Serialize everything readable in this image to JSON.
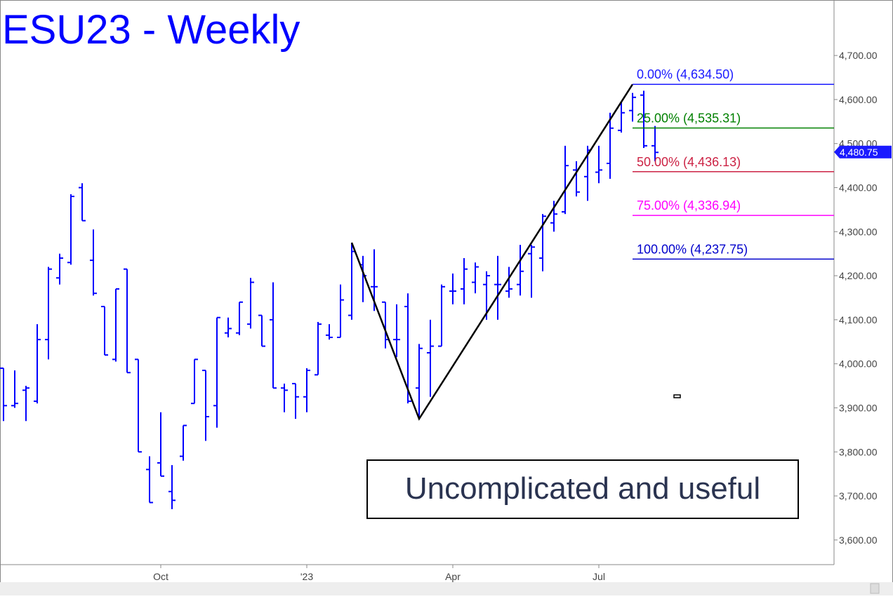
{
  "chart_data": {
    "type": "ohlc",
    "title": "ESU23 - Weekly",
    "color": "#0000ff",
    "categories": [
      null,
      null,
      null,
      null,
      null,
      null,
      null,
      null,
      null,
      null,
      null,
      null,
      null,
      null,
      null,
      null,
      null,
      null,
      null,
      null,
      null,
      null,
      null,
      null,
      null,
      null,
      null,
      null,
      null,
      null,
      null,
      null,
      null,
      null,
      null,
      null,
      null,
      null,
      null,
      null,
      null,
      null,
      null,
      null,
      null,
      null,
      null,
      null,
      null,
      null,
      null,
      null,
      null,
      null,
      null,
      null,
      null,
      null,
      null
    ],
    "open": [
      3990,
      3905,
      3940,
      3915,
      4055,
      4195,
      4230,
      4400,
      4235,
      4130,
      4010,
      4215,
      4010,
      3760,
      3775,
      3710,
      3790,
      3910,
      3985,
      3905,
      4070,
      4070,
      4090,
      4110,
      4100,
      3945,
      3955,
      3925,
      3975,
      4065,
      4060,
      4110,
      4225,
      4175,
      4140,
      4055,
      4130,
      3945,
      4025,
      4040,
      4165,
      4170,
      4185,
      4180,
      4180,
      4165,
      4180,
      4250,
      4240,
      4320,
      4345,
      4440,
      4425,
      4435,
      4455,
      4530,
      4575,
      4610,
      4495
    ],
    "high": [
      3990,
      3985,
      3950,
      4090,
      4220,
      4250,
      4385,
      4410,
      4305,
      4130,
      4170,
      4215,
      4010,
      3790,
      3890,
      3770,
      3860,
      4010,
      3985,
      4105,
      4105,
      4140,
      4195,
      4110,
      4185,
      3955,
      3955,
      3990,
      4095,
      4090,
      4180,
      4275,
      4245,
      4260,
      4140,
      4135,
      4160,
      4045,
      4100,
      4180,
      4205,
      4240,
      4230,
      4210,
      4245,
      4220,
      4270,
      4270,
      4340,
      4370,
      4495,
      4460,
      4495,
      4495,
      4570,
      4595,
      4615,
      4620,
      4540
    ],
    "low": [
      3870,
      3900,
      3870,
      3910,
      4010,
      4180,
      4225,
      4325,
      4155,
      4020,
      4005,
      3980,
      3800,
      3685,
      3745,
      3670,
      3780,
      3910,
      3825,
      3855,
      4060,
      4065,
      4080,
      4040,
      3945,
      3890,
      3875,
      3890,
      3975,
      4055,
      4060,
      4100,
      4140,
      4120,
      4035,
      4015,
      3910,
      3875,
      3925,
      4040,
      4135,
      4135,
      4160,
      4100,
      4100,
      4150,
      4155,
      4150,
      4210,
      4300,
      4340,
      4380,
      4370,
      4410,
      4420,
      4525,
      4550,
      4490,
      4460
    ],
    "close": [
      3905,
      3910,
      3945,
      4055,
      4215,
      4240,
      4380,
      4325,
      4160,
      4020,
      4170,
      3980,
      3800,
      3685,
      3745,
      3690,
      3860,
      4010,
      3880,
      4105,
      4080,
      4140,
      4185,
      4040,
      3945,
      3940,
      3925,
      3985,
      4090,
      4060,
      4145,
      4255,
      4200,
      4175,
      4055,
      4055,
      3915,
      4035,
      4040,
      4175,
      4165,
      4215,
      4220,
      4200,
      4180,
      4170,
      4210,
      4265,
      4335,
      4340,
      4450,
      4390,
      4485,
      4440,
      4535,
      4570,
      4605,
      4495,
      4480
    ],
    "ylim": [
      3544,
      4826
    ],
    "yticks": [
      {
        "value": 3600,
        "label": "3,600.00"
      },
      {
        "value": 3700,
        "label": "3,700.00"
      },
      {
        "value": 3800,
        "label": "3,800.00"
      },
      {
        "value": 3900,
        "label": "3,900.00"
      },
      {
        "value": 4000,
        "label": "4,000.00"
      },
      {
        "value": 4100,
        "label": "4,100.00"
      },
      {
        "value": 4200,
        "label": "4,200.00"
      },
      {
        "value": 4300,
        "label": "4,300.00"
      },
      {
        "value": 4400,
        "label": "4,400.00"
      },
      {
        "value": 4500,
        "label": "4,500.00"
      },
      {
        "value": 4600,
        "label": "4,600.00"
      },
      {
        "value": 4700,
        "label": "4,700.00"
      }
    ],
    "xticks": [
      {
        "value": 14,
        "label": "Oct"
      },
      {
        "value": 27,
        "label": "'23"
      },
      {
        "value": 40,
        "label": "Apr"
      },
      {
        "value": 53,
        "label": "Jul"
      }
    ],
    "swing": {
      "x": [
        31,
        37,
        56
      ],
      "y": [
        4275,
        3875,
        4634.5
      ]
    },
    "levels": [
      {
        "label": "0.00% (4,634.50)",
        "value": 4634.5,
        "color": "#1a1aff"
      },
      {
        "label": "25.00% (4,535.31)",
        "value": 4535.31,
        "color": "#008000"
      },
      {
        "label": "50.00% (4,436.13)",
        "value": 4436.13,
        "color": "#cc2244"
      },
      {
        "label": "75.00% (4,336.94)",
        "value": 4336.94,
        "color": "#ff00ff"
      },
      {
        "label": "100.00% (4,237.75)",
        "value": 4237.75,
        "color": "#0000cc"
      }
    ],
    "level_start": 56,
    "last_price": {
      "value": 4480.75,
      "label": "4,480.75"
    },
    "annotation": "Uncomplicated and useful"
  }
}
